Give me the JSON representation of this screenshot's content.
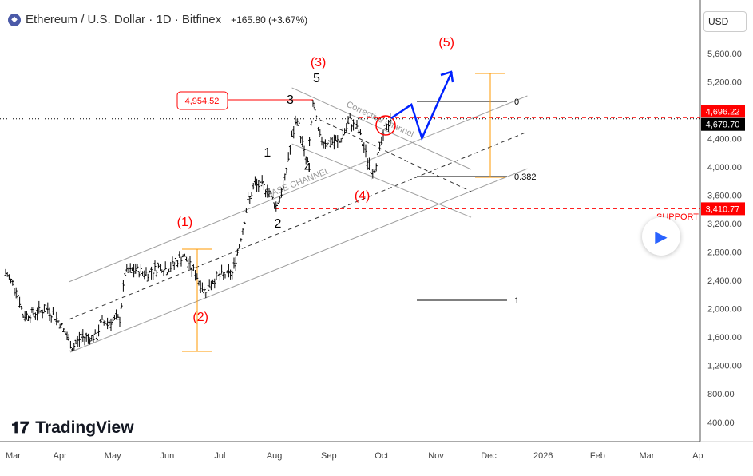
{
  "header": {
    "title": "Ethereum / U.S. Dollar · 1D · Bitfinex",
    "change": "+165.80 (+3.67%)",
    "currency": "USD"
  },
  "logo": "TradingView",
  "colors": {
    "red": "#ff0000",
    "blue": "#0022ff",
    "orange": "#ff9800",
    "grey": "#a0a0a0"
  },
  "chart_data": {
    "type": "line",
    "title": "Ethereum / U.S. Dollar · 1D · Bitfinex",
    "ylim": [
      0,
      6000
    ],
    "yticks": [
      "5,600.00",
      "5,200.00",
      "4,400.00",
      "4,000.00",
      "3,600.00",
      "3,200.00",
      "2,800.00",
      "2,400.00",
      "2,000.00",
      "1,600.00",
      "1,200.00",
      "800.00",
      "400.00"
    ],
    "ytick_values": [
      5600,
      5200,
      4400,
      4000,
      3600,
      3200,
      2800,
      2400,
      2000,
      1600,
      1200,
      800,
      400
    ],
    "xticks": [
      {
        "label": "Mar",
        "day": 0
      },
      {
        "label": "Apr",
        "day": 31
      },
      {
        "label": "May",
        "day": 61
      },
      {
        "label": "Jun",
        "day": 92
      },
      {
        "label": "Jul",
        "day": 122
      },
      {
        "label": "Aug",
        "day": 153
      },
      {
        "label": "Sep",
        "day": 184
      },
      {
        "label": "Oct",
        "day": 214
      },
      {
        "label": "Nov",
        "day": 245
      },
      {
        "label": "Dec",
        "day": 275
      },
      {
        "label": "2026",
        "day": 306
      },
      {
        "label": "Feb",
        "day": 337
      },
      {
        "label": "Mar",
        "day": 365
      },
      {
        "label": "Ap",
        "day": 394
      }
    ],
    "price_path": [
      [
        0,
        2500
      ],
      [
        6,
        2300
      ],
      [
        10,
        1900
      ],
      [
        24,
        2000
      ],
      [
        31,
        1800
      ],
      [
        38,
        1450
      ],
      [
        43,
        1600
      ],
      [
        52,
        1600
      ],
      [
        54,
        1800
      ],
      [
        65,
        1850
      ],
      [
        68,
        2500
      ],
      [
        74,
        2550
      ],
      [
        81,
        2500
      ],
      [
        88,
        2600
      ],
      [
        92,
        2550
      ],
      [
        101,
        2750
      ],
      [
        108,
        2500
      ],
      [
        113,
        2250
      ],
      [
        120,
        2450
      ],
      [
        129,
        2500
      ],
      [
        133,
        2900
      ],
      [
        138,
        3500
      ],
      [
        142,
        3750
      ],
      [
        149,
        3700
      ],
      [
        154,
        3450
      ],
      [
        158,
        3700
      ],
      [
        163,
        4400
      ],
      [
        166,
        4700
      ],
      [
        170,
        4200
      ],
      [
        172,
        4050
      ],
      [
        175,
        4900
      ],
      [
        179,
        4400
      ],
      [
        183,
        4350
      ],
      [
        190,
        4350
      ],
      [
        196,
        4650
      ],
      [
        201,
        4500
      ],
      [
        206,
        4100
      ],
      [
        209,
        3900
      ],
      [
        213,
        4250
      ],
      [
        216,
        4500
      ],
      [
        219,
        4680
      ]
    ],
    "price_labels": [
      {
        "text": "4,696.22",
        "price": 4696.22,
        "color": "red"
      },
      {
        "text": "4,679.70",
        "price": 4679.7,
        "color": "black"
      },
      {
        "text": "3,410.77",
        "price": 3410.77,
        "color": "red"
      }
    ],
    "callout": {
      "text": "4,954.52",
      "price": 4954.52
    },
    "support_label": "SUPPORT",
    "wave_labels": [
      {
        "text": "(3)",
        "day": 178,
        "price": 5420,
        "color": "red"
      },
      {
        "text": "5",
        "day": 177,
        "price": 5195,
        "color": "black"
      },
      {
        "text": "3",
        "day": 162,
        "price": 4890,
        "color": "black"
      },
      {
        "text": "1",
        "day": 149,
        "price": 4147,
        "color": "black"
      },
      {
        "text": "4",
        "day": 172,
        "price": 3933,
        "color": "black"
      },
      {
        "text": "2",
        "day": 155,
        "price": 3145,
        "color": "black"
      },
      {
        "text": "(1)",
        "day": 102,
        "price": 3168,
        "color": "red"
      },
      {
        "text": "(2)",
        "day": 111,
        "price": 1827,
        "color": "red"
      },
      {
        "text": "(4)",
        "day": 203,
        "price": 3540,
        "color": "red"
      },
      {
        "text": "(5)",
        "day": 251,
        "price": 5700,
        "color": "red"
      }
    ],
    "fib_levels": [
      {
        "label": "0",
        "price": 4924
      },
      {
        "label": "0.382",
        "price": 3866
      },
      {
        "label": "1",
        "price": 2120
      }
    ],
    "channel_labels": [
      "BASE CHANNEL",
      "Corrective channel"
    ],
    "projection": [
      [
        219.5,
        4688
      ],
      [
        231,
        4880
      ],
      [
        237,
        4407
      ],
      [
        254,
        5341
      ]
    ]
  }
}
